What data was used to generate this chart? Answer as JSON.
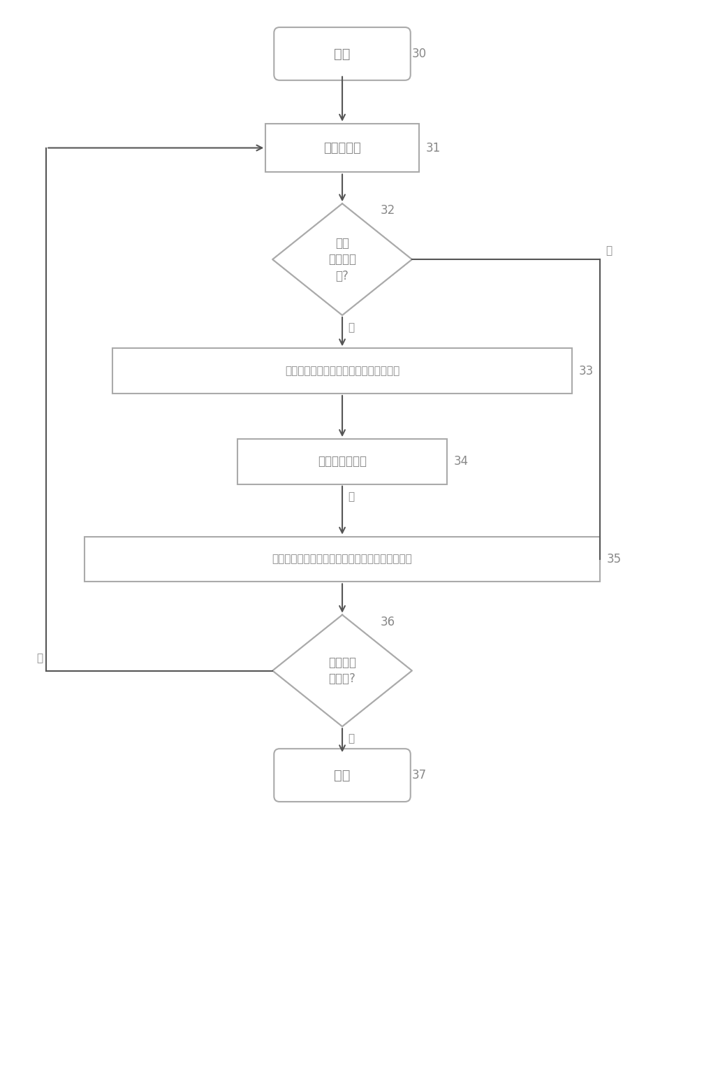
{
  "bg_color": "#ffffff",
  "line_color": "#aaaaaa",
  "text_color": "#888888",
  "arrow_color": "#555555",
  "start_label": "开始",
  "start_num": "30",
  "box31_label": "取一个文件",
  "box31_num": "31",
  "diamond32_label": "是否\n包含插桩\n点?",
  "diamond32_num": "32",
  "box33_label": "将文件进行备份并找出文件中所有插桩点",
  "box33_num": "33",
  "box34_label": "按行号顺序排列",
  "box34_num": "34",
  "box35_label": "将所有插桩点逐个添加到文件中，产生一个新文件",
  "box35_num": "35",
  "diamond36_label": "还有下一\n个文件?",
  "diamond36_num": "36",
  "end_label": "结束",
  "end_num": "37",
  "yes32_label": "是",
  "no32_label": "否",
  "yes36_label": "是",
  "no36_label": "否",
  "fig_width": 10.08,
  "fig_height": 15.58
}
